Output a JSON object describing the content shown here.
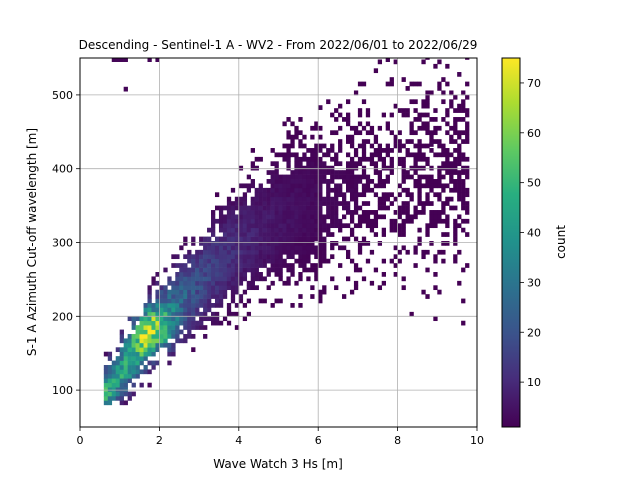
{
  "chart_data": {
    "type": "heatmap",
    "title": "Descending - Sentinel-1 A - WV2 - From 2022/06/01 to 2022/06/29",
    "xlabel": "Wave Watch 3 Hs [m]",
    "ylabel": "S-1 A Azimuth Cut-off wavelength [m]",
    "xlim": [
      0,
      10
    ],
    "ylim": [
      50,
      550
    ],
    "xticks": [
      0,
      2,
      4,
      6,
      8,
      10
    ],
    "yticks": [
      100,
      200,
      300,
      400,
      500
    ],
    "grid": true,
    "colormap": "viridis",
    "colorbar": {
      "label": "count",
      "range": [
        1,
        75
      ],
      "ticks": [
        10,
        20,
        30,
        40,
        50,
        60,
        70
      ]
    },
    "bins": {
      "dx": 0.1,
      "dy": 6
    },
    "density_ridge": [
      {
        "hs": 0.8,
        "cutoff": 110
      },
      {
        "hs": 1.8,
        "cutoff": 180
      },
      {
        "hs": 3.0,
        "cutoff": 245
      },
      {
        "hs": 4.0,
        "cutoff": 295
      },
      {
        "hs": 5.0,
        "cutoff": 330
      },
      {
        "hs": 6.5,
        "cutoff": 365
      },
      {
        "hs": 8.0,
        "cutoff": 380
      },
      {
        "hs": 9.5,
        "cutoff": 395
      }
    ],
    "peak": {
      "hs": 1.75,
      "cutoff": 180,
      "count": 75
    }
  }
}
